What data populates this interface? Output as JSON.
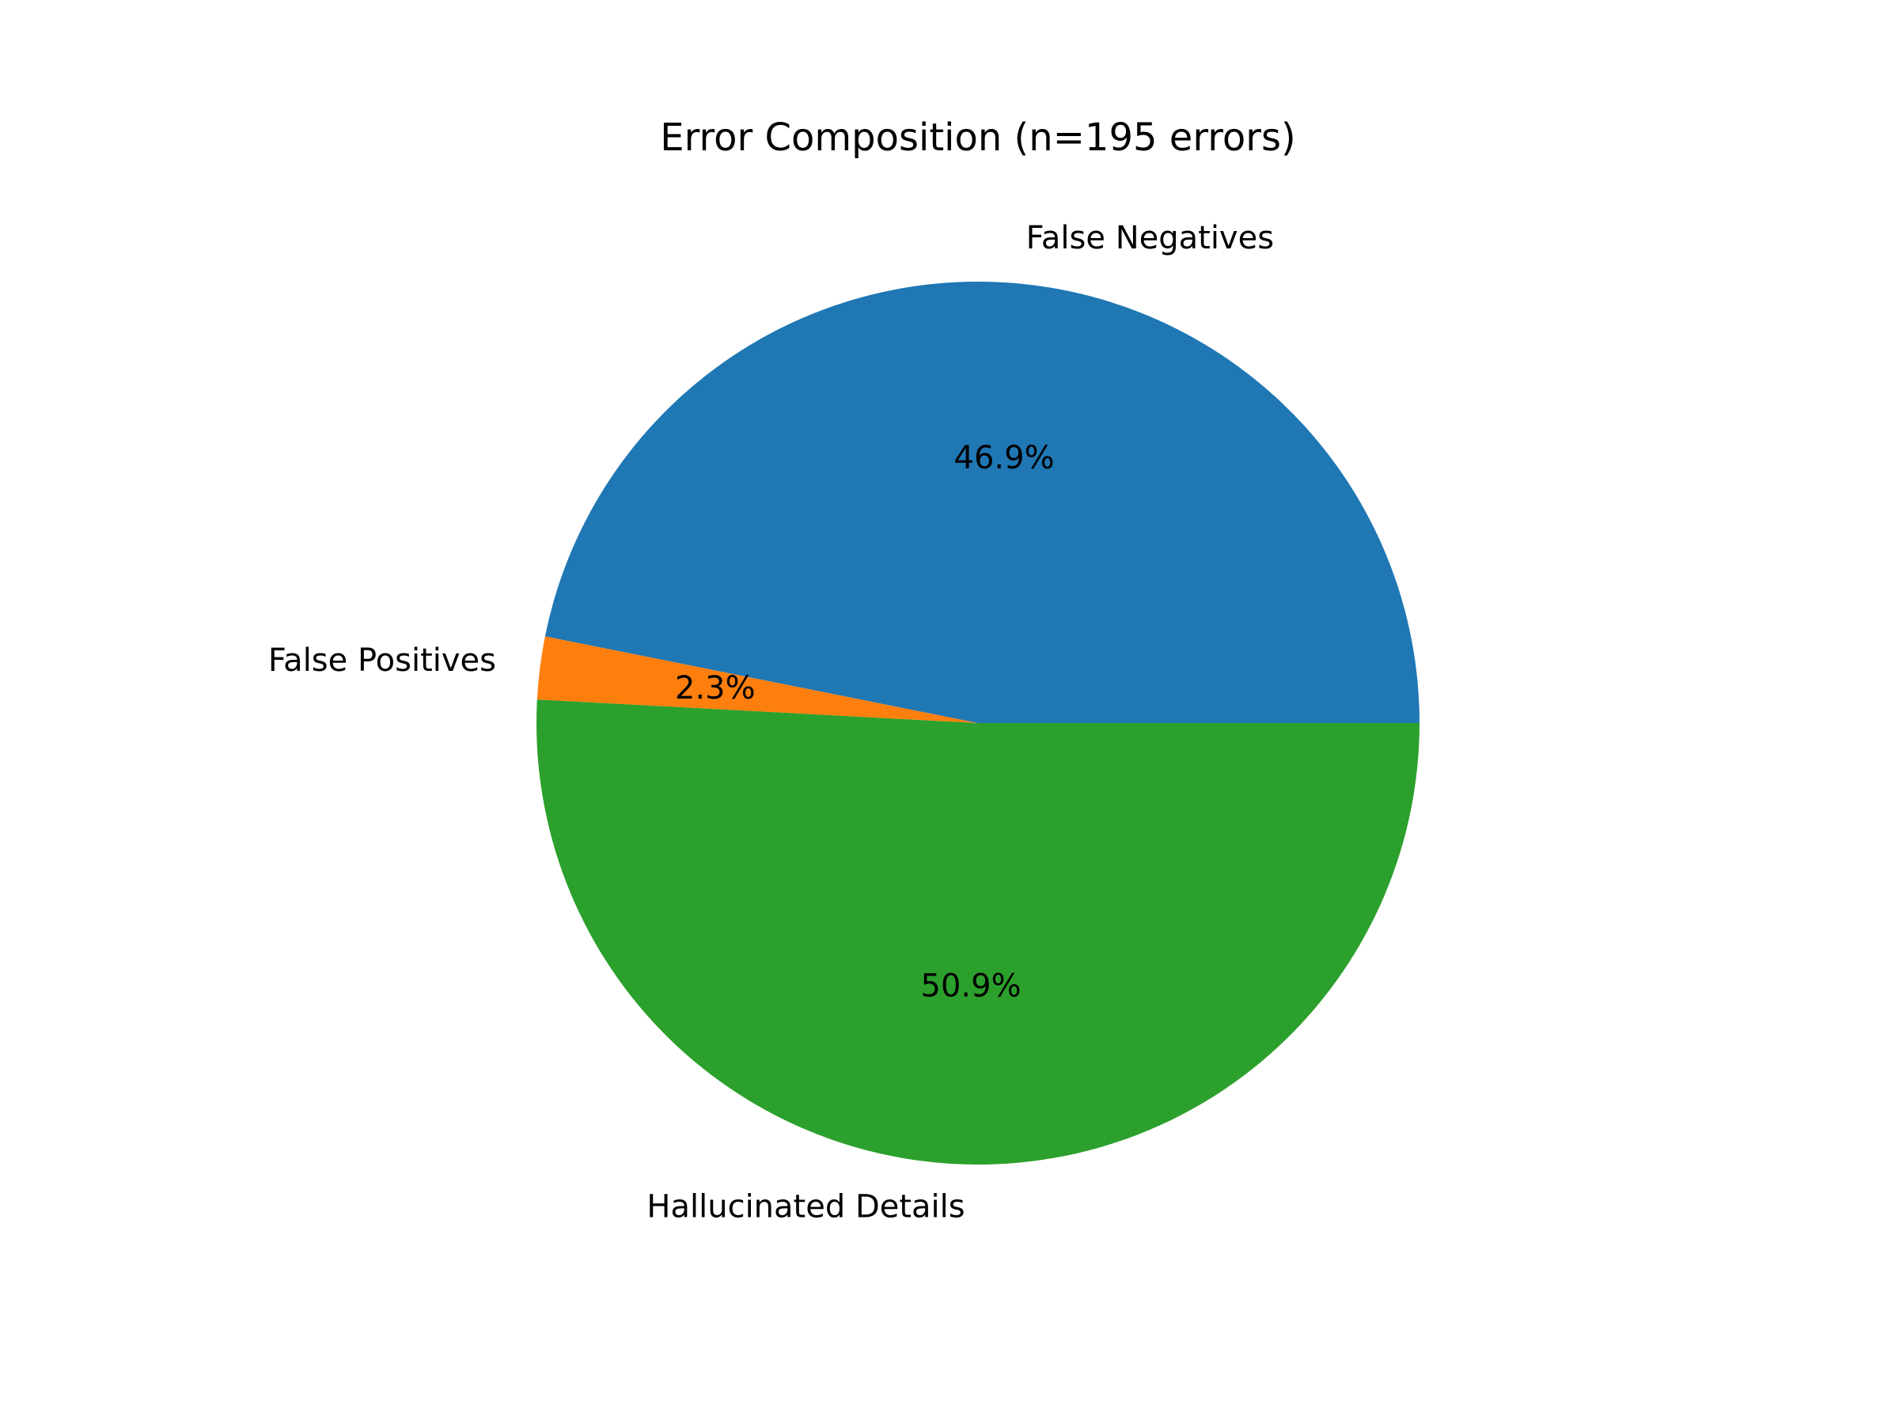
{
  "chart_data": {
    "type": "pie",
    "title": "Error Composition (n=195 errors)",
    "start_angle_deg": 0,
    "direction": "counterclockwise",
    "slices": [
      {
        "label": "False Negatives",
        "value": 46.9,
        "pct_label": "46.9%",
        "color": "#1f77b4"
      },
      {
        "label": "False Positives",
        "value": 2.3,
        "pct_label": "2.3%",
        "color": "#ff7f0e"
      },
      {
        "label": "Hallucinated Details",
        "value": 50.9,
        "pct_label": "50.9%",
        "color": "#2ca02c"
      }
    ]
  }
}
